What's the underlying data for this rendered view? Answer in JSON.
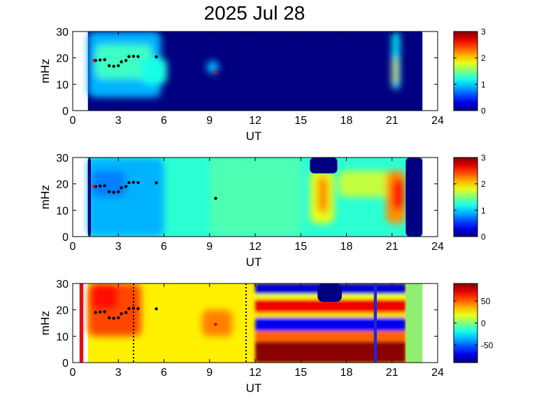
{
  "title": "2025 Jul 28",
  "colors": {
    "background": "#000080",
    "marker_black": "#000000",
    "marker_red": "#e00000",
    "red_bar": "#e01010",
    "blue_bar": "#1e28d8",
    "mask_green": "#90ee70"
  },
  "chart_data": [
    {
      "type": "heatmap",
      "panel": "top",
      "xlabel": "UT",
      "ylabel": "mHz",
      "xlim": [
        0,
        24
      ],
      "ylim": [
        0,
        30
      ],
      "xticks": [
        "0",
        "3",
        "6",
        "9",
        "12",
        "15",
        "18",
        "21",
        "24"
      ],
      "yticks": [
        "0",
        "10",
        "20",
        "30"
      ],
      "data_span_ut": [
        1.0,
        23.0
      ],
      "colorbar": {
        "range": [
          0,
          3
        ],
        "ticks": [
          "0",
          "1",
          "2",
          "3"
        ]
      },
      "blobs": [
        {
          "ut": [
            1.0,
            5.8
          ],
          "mhz": [
            5,
            30
          ],
          "level": 0.9
        },
        {
          "ut": [
            1.5,
            5.2
          ],
          "mhz": [
            12,
            25
          ],
          "level": 1.3
        },
        {
          "ut": [
            4.5,
            6.2
          ],
          "mhz": [
            10,
            20
          ],
          "level": 1.2
        },
        {
          "ut": [
            8.8,
            9.6
          ],
          "mhz": [
            14,
            19
          ],
          "level": 0.9
        },
        {
          "ut": [
            21.0,
            21.5
          ],
          "mhz": [
            8,
            30
          ],
          "level": 1.1
        },
        {
          "ut": [
            21.05,
            21.35
          ],
          "mhz": [
            10,
            20
          ],
          "level": 1.8
        }
      ],
      "markers": [
        {
          "ut": 1.5,
          "mhz": 19
        },
        {
          "ut": 1.8,
          "mhz": 19.2
        },
        {
          "ut": 2.1,
          "mhz": 19.3
        },
        {
          "ut": 2.4,
          "mhz": 17
        },
        {
          "ut": 2.7,
          "mhz": 16.8
        },
        {
          "ut": 3.0,
          "mhz": 17
        },
        {
          "ut": 3.2,
          "mhz": 18.5
        },
        {
          "ut": 3.5,
          "mhz": 19
        },
        {
          "ut": 3.7,
          "mhz": 20.5
        },
        {
          "ut": 4.0,
          "mhz": 20.6
        },
        {
          "ut": 4.3,
          "mhz": 20.5
        },
        {
          "ut": 5.5,
          "mhz": 20.4
        }
      ],
      "red_markers": [
        {
          "ut": 1.4,
          "mhz": 19
        },
        {
          "ut": 9.4,
          "mhz": 14.5
        }
      ]
    },
    {
      "type": "heatmap",
      "panel": "middle",
      "xlabel": "UT",
      "ylabel": "mHz",
      "xlim": [
        0,
        24
      ],
      "ylim": [
        0,
        30
      ],
      "xticks": [
        "0",
        "3",
        "6",
        "9",
        "12",
        "15",
        "18",
        "21",
        "24"
      ],
      "yticks": [
        "0",
        "10",
        "20",
        "30"
      ],
      "data_span_ut": [
        1.0,
        23.0
      ],
      "colorbar": {
        "range": [
          0,
          3
        ],
        "ticks": [
          "0",
          "1",
          "2",
          "3"
        ]
      },
      "base_level": 1.25,
      "blobs": [
        {
          "ut": [
            1.0,
            6.0
          ],
          "mhz": [
            0,
            30
          ],
          "level": 0.9
        },
        {
          "ut": [
            1.2,
            3.5
          ],
          "mhz": [
            15,
            25
          ],
          "level": 0.75
        },
        {
          "ut": [
            9.0,
            15.0
          ],
          "mhz": [
            0,
            30
          ],
          "level": 1.35
        },
        {
          "ut": [
            15.6,
            17.2
          ],
          "mhz": [
            5,
            25
          ],
          "level": 1.8
        },
        {
          "ut": [
            16.1,
            16.8
          ],
          "mhz": [
            9,
            23
          ],
          "level": 2.2
        },
        {
          "ut": [
            17.5,
            21.0
          ],
          "mhz": [
            15,
            25
          ],
          "level": 1.7
        },
        {
          "ut": [
            20.6,
            21.9
          ],
          "mhz": [
            5,
            25
          ],
          "level": 2.2
        },
        {
          "ut": [
            21.0,
            21.8
          ],
          "mhz": [
            10,
            22
          ],
          "level": 2.6
        }
      ],
      "masks": [
        {
          "ut": [
            15.6,
            17.4
          ],
          "mhz": [
            24,
            30
          ],
          "level": 0
        },
        {
          "ut": [
            21.9,
            23.0
          ],
          "mhz": [
            0,
            30
          ],
          "level": 0
        },
        {
          "ut": [
            1.0,
            1.2
          ],
          "mhz": [
            0,
            30
          ],
          "level": 0
        }
      ],
      "markers": [
        {
          "ut": 1.5,
          "mhz": 19
        },
        {
          "ut": 1.8,
          "mhz": 19.2
        },
        {
          "ut": 2.1,
          "mhz": 19.3
        },
        {
          "ut": 2.4,
          "mhz": 17
        },
        {
          "ut": 2.7,
          "mhz": 16.8
        },
        {
          "ut": 3.0,
          "mhz": 17
        },
        {
          "ut": 3.2,
          "mhz": 18.5
        },
        {
          "ut": 3.5,
          "mhz": 19
        },
        {
          "ut": 3.7,
          "mhz": 20.5
        },
        {
          "ut": 4.0,
          "mhz": 20.6
        },
        {
          "ut": 4.3,
          "mhz": 20.5
        },
        {
          "ut": 5.5,
          "mhz": 20.4
        },
        {
          "ut": 9.4,
          "mhz": 14.5
        }
      ],
      "red_markers": [
        {
          "ut": 1.4,
          "mhz": 19
        }
      ]
    },
    {
      "type": "heatmap",
      "panel": "bottom",
      "xlabel": "UT",
      "ylabel": "mHz",
      "xlim": [
        0,
        24
      ],
      "ylim": [
        0,
        30
      ],
      "xticks": [
        "0",
        "3",
        "6",
        "9",
        "12",
        "15",
        "18",
        "21",
        "24"
      ],
      "yticks": [
        "0",
        "10",
        "20",
        "30"
      ],
      "data_span_ut": [
        1.0,
        23.0
      ],
      "colorbar": {
        "range": [
          -90,
          90
        ],
        "ticks": [
          "50",
          "0",
          "-50"
        ]
      },
      "bands_region_ut": [
        12.0,
        21.9
      ],
      "bands": [
        {
          "mhz": [
            0,
            8
          ],
          "value": 88
        },
        {
          "mhz": [
            8,
            12
          ],
          "value": 50
        },
        {
          "mhz": [
            12,
            17
          ],
          "value": -70
        },
        {
          "mhz": [
            17,
            19
          ],
          "value": 30
        },
        {
          "mhz": [
            19,
            24
          ],
          "value": 70
        },
        {
          "mhz": [
            24,
            26
          ],
          "value": 20
        },
        {
          "mhz": [
            26,
            30
          ],
          "value": -75
        }
      ],
      "early_base": 25,
      "early_blobs": [
        {
          "ut": [
            1.0,
            4.5
          ],
          "mhz": [
            10,
            30
          ],
          "value": 55
        },
        {
          "ut": [
            1.2,
            3.0
          ],
          "mhz": [
            20,
            30
          ],
          "value": 65
        },
        {
          "ut": [
            8.5,
            10.5
          ],
          "mhz": [
            10,
            20
          ],
          "value": 45
        }
      ],
      "masks": [
        {
          "ut": [
            16.1,
            17.7
          ],
          "mhz": [
            23,
            30
          ],
          "value": -90
        },
        {
          "ut": [
            21.9,
            23.0
          ],
          "mhz": [
            0,
            30
          ],
          "value": 0
        }
      ],
      "dotted_lines_ut": [
        4.0,
        11.4
      ],
      "red_bar_ut": [
        0.45,
        0.7
      ],
      "blue_bar_ut": [
        19.8,
        20.0
      ],
      "markers": [
        {
          "ut": 1.5,
          "mhz": 19
        },
        {
          "ut": 1.8,
          "mhz": 19.2
        },
        {
          "ut": 2.1,
          "mhz": 19.3
        },
        {
          "ut": 2.4,
          "mhz": 17
        },
        {
          "ut": 2.7,
          "mhz": 16.8
        },
        {
          "ut": 3.0,
          "mhz": 17
        },
        {
          "ut": 3.2,
          "mhz": 18.5
        },
        {
          "ut": 3.5,
          "mhz": 19
        },
        {
          "ut": 3.7,
          "mhz": 20.5
        },
        {
          "ut": 4.0,
          "mhz": 20.6
        },
        {
          "ut": 4.3,
          "mhz": 20.5
        },
        {
          "ut": 5.5,
          "mhz": 20.4
        }
      ],
      "red_markers": [
        {
          "ut": 9.4,
          "mhz": 14.5
        }
      ]
    }
  ]
}
